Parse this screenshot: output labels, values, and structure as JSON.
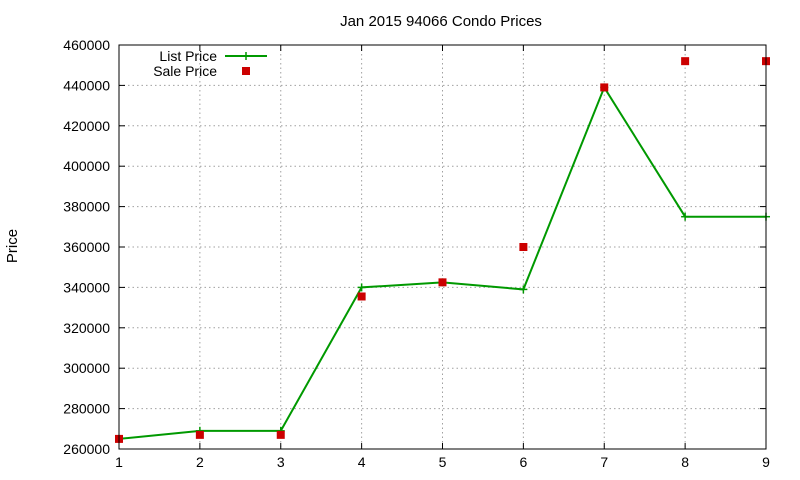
{
  "chart_data": {
    "type": "line",
    "title": "Jan 2015 94066 Condo Prices",
    "xlabel": "",
    "ylabel": "Price",
    "xlim": [
      1,
      9
    ],
    "ylim": [
      260000,
      460000
    ],
    "x_ticks": [
      1,
      2,
      3,
      4,
      5,
      6,
      7,
      8,
      9
    ],
    "y_ticks": [
      260000,
      280000,
      300000,
      320000,
      340000,
      360000,
      380000,
      400000,
      420000,
      440000,
      460000
    ],
    "grid": true,
    "legend_position": "top-left",
    "series": [
      {
        "name": "List Price",
        "kind": "line",
        "marker": "plus",
        "color": "#009900",
        "x": [
          1,
          2,
          3,
          4,
          5,
          6,
          7,
          8,
          9
        ],
        "y": [
          265000,
          269000,
          269000,
          340000,
          342500,
          339000,
          439000,
          375000,
          375000
        ]
      },
      {
        "name": "Sale Price",
        "kind": "scatter",
        "marker": "square",
        "color": "#cc0000",
        "x": [
          1,
          2,
          3,
          4,
          5,
          6,
          7,
          8,
          9
        ],
        "y": [
          265000,
          267000,
          267000,
          335500,
          342500,
          360000,
          439000,
          452000,
          452000
        ]
      }
    ]
  }
}
